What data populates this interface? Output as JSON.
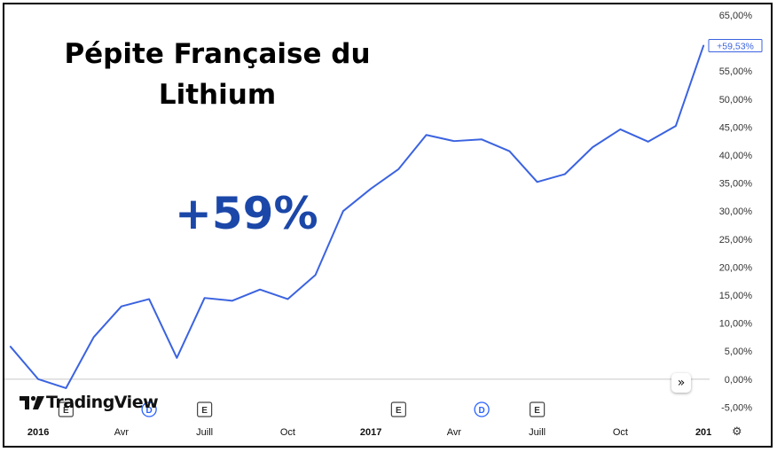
{
  "headline": {
    "line1": "Pépite Française du",
    "line2": "Lithium"
  },
  "big_change": "+59%",
  "logo": {
    "text": "TradingView"
  },
  "nav_button": {
    "icon": "double-chevron-right-icon",
    "glyph": "»"
  },
  "settings": {
    "icon": "gear-icon",
    "glyph": "⚙"
  },
  "event_markers": [
    {
      "label": "E",
      "kind": "earnings",
      "x_date": "2016-02"
    },
    {
      "label": "D",
      "kind": "dividend",
      "x_date": "2016-05"
    },
    {
      "label": "E",
      "kind": "earnings",
      "x_date": "2016-07"
    },
    {
      "label": "E",
      "kind": "earnings",
      "x_date": "2017-02"
    },
    {
      "label": "D",
      "kind": "dividend",
      "x_date": "2017-05"
    },
    {
      "label": "E",
      "kind": "earnings",
      "x_date": "2017-07"
    }
  ],
  "colors": {
    "line": "#3b63e0",
    "accent_text": "#1b47a8",
    "dividend": "#2962ff",
    "axis_text": "#333333",
    "zero_line": "#c8c8c8"
  },
  "chart_data": {
    "type": "line",
    "title": "",
    "xlabel": "",
    "ylabel": "",
    "x_ticks": [
      {
        "label": "2016",
        "date": "2016-01",
        "bold": true
      },
      {
        "label": "Avr",
        "date": "2016-04",
        "bold": false
      },
      {
        "label": "Juill",
        "date": "2016-07",
        "bold": false
      },
      {
        "label": "Oct",
        "date": "2016-10",
        "bold": false
      },
      {
        "label": "2017",
        "date": "2017-01",
        "bold": true
      },
      {
        "label": "Avr",
        "date": "2017-04",
        "bold": false
      },
      {
        "label": "Juill",
        "date": "2017-07",
        "bold": false
      },
      {
        "label": "Oct",
        "date": "2017-10",
        "bold": false
      },
      {
        "label": "201",
        "date": "2018-01",
        "bold": true
      }
    ],
    "y_ticks": [
      "65,00%",
      "60,00%",
      "55,00%",
      "50,00%",
      "45,00%",
      "40,00%",
      "35,00%",
      "30,00%",
      "25,00%",
      "20,00%",
      "15,00%",
      "10,00%",
      "5,00%",
      "0,00%",
      "-5,00%"
    ],
    "y_tick_values": [
      65,
      60,
      55,
      50,
      45,
      40,
      35,
      30,
      25,
      20,
      15,
      10,
      5,
      0,
      -5
    ],
    "ylim": [
      -7.3,
      66.1
    ],
    "last_value_label": "+59,53%",
    "series": [
      {
        "x": [
          "2015-12",
          "2016-01",
          "2016-02",
          "2016-03",
          "2016-04",
          "2016-05",
          "2016-06",
          "2016-07",
          "2016-08",
          "2016-09",
          "2016-10",
          "2016-11",
          "2016-12",
          "2017-01",
          "2017-02",
          "2017-03",
          "2017-04",
          "2017-05",
          "2017-06",
          "2017-07",
          "2017-08",
          "2017-09",
          "2017-10",
          "2017-11",
          "2017-12",
          "2018-01"
        ],
        "values": [
          5.8,
          0,
          -1.6,
          7.5,
          13,
          14.3,
          3.8,
          14.5,
          14,
          16,
          14.3,
          18.6,
          30,
          34,
          37.5,
          43.6,
          42.5,
          42.8,
          40.7,
          35.2,
          36.6,
          41.4,
          44.6,
          42.4,
          45.2,
          59.53
        ]
      }
    ]
  }
}
